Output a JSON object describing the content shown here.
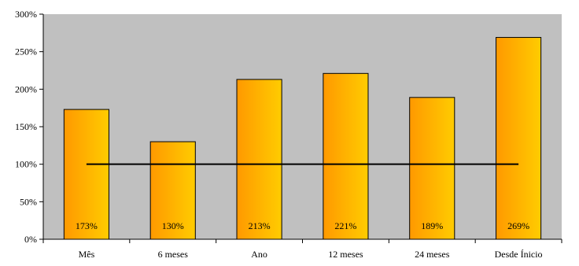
{
  "chart_data": {
    "type": "bar",
    "categories": [
      "Mês",
      "6 meses",
      "Ano",
      "12 meses",
      "24 meses",
      "Desde Ínicio"
    ],
    "values": [
      173,
      130,
      213,
      221,
      189,
      269
    ],
    "data_labels": [
      "173%",
      "130%",
      "213%",
      "221%",
      "189%",
      "269%"
    ],
    "yticks": [
      0,
      50,
      100,
      150,
      200,
      250,
      300
    ],
    "ytick_labels": [
      "0%",
      "50%",
      "100%",
      "150%",
      "200%",
      "250%",
      "300%"
    ],
    "ylim": [
      0,
      300
    ],
    "reference_line": 100,
    "grid": false,
    "legend": "none",
    "colors": {
      "plot_background": "#c0c0c0",
      "bar_left": "#ff9900",
      "bar_right": "#ffcc00",
      "bar_edge": "#000000",
      "reference_line": "#000000"
    }
  }
}
